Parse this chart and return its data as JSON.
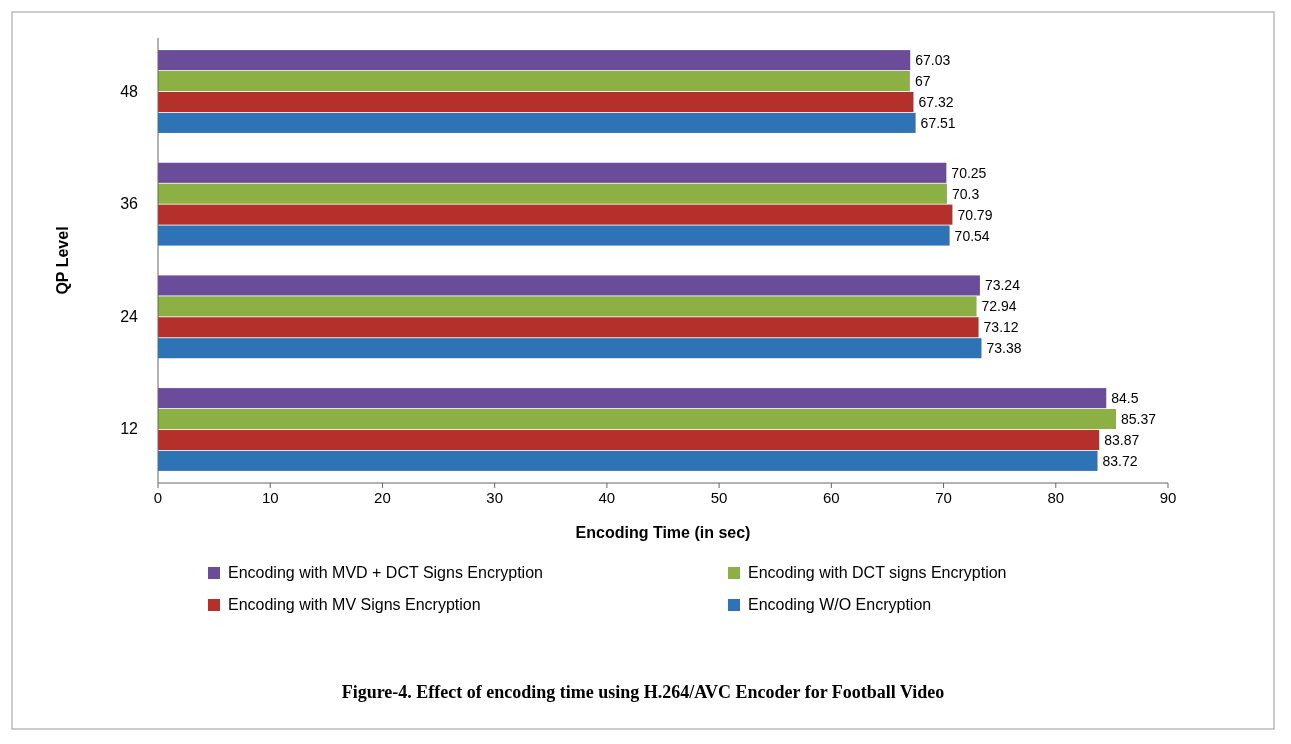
{
  "chart_data": {
    "type": "bar",
    "orientation": "horizontal",
    "xlabel": "Encoding Time (in sec)",
    "ylabel": "QP Level",
    "categories": [
      "48",
      "36",
      "24",
      "12"
    ],
    "series": [
      {
        "name": "Encoding with MVD + DCT Signs Encryption",
        "color": "#6b4c9a",
        "values": [
          67.03,
          70.25,
          73.24,
          84.5
        ]
      },
      {
        "name": "Encoding with DCT signs Encryption",
        "color": "#8cb043",
        "values": [
          67,
          70.3,
          72.94,
          85.37
        ]
      },
      {
        "name": "Encoding with MV Signs Encryption",
        "color": "#b5302b",
        "values": [
          67.32,
          70.79,
          73.12,
          83.87
        ]
      },
      {
        "name": "Encoding W/O Encryption",
        "color": "#2e73b5",
        "values": [
          67.51,
          70.54,
          73.38,
          83.72
        ]
      }
    ],
    "xlim": [
      0,
      90
    ],
    "xticks": [
      0,
      10,
      20,
      30,
      40,
      50,
      60,
      70,
      80,
      90
    ],
    "data_labels": true,
    "legend": "bottom",
    "grid": false,
    "annotations": [
      "Figure-4. Effect of encoding time using H.264/AVC Encoder for Football Video"
    ]
  }
}
